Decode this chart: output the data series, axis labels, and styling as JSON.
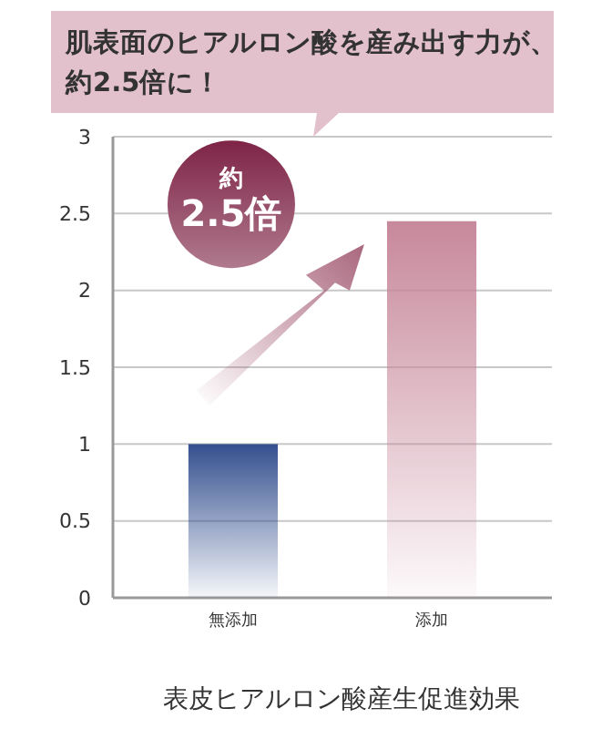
{
  "chart_data": {
    "type": "bar",
    "title": "肌表面のヒアルロン酸を産み出す力が、約2.5倍に！",
    "categories": [
      "無添加",
      "添加"
    ],
    "values": [
      1,
      2.45
    ],
    "colors": [
      "#34508f",
      "#c7889b"
    ],
    "ylim": [
      0,
      3
    ],
    "yticks": [
      0,
      0.5,
      1,
      1.5,
      2,
      2.5,
      3
    ],
    "grid": "y",
    "annotations": [
      "約\n2.5倍",
      "表皮ヒアルロン酸産生促進効果"
    ]
  }
}
